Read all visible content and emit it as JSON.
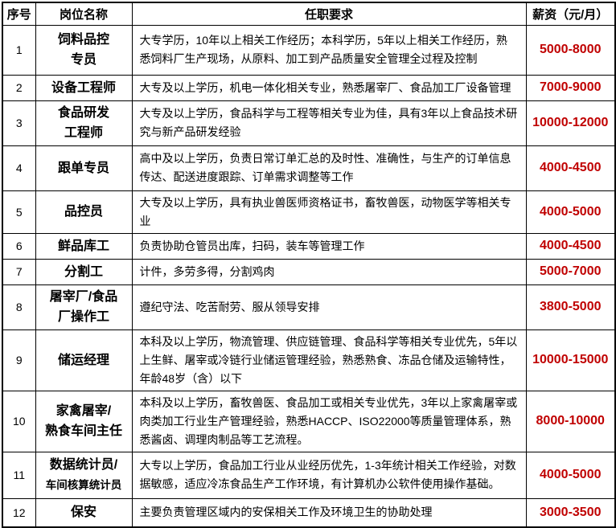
{
  "colors": {
    "salary_text": "#c00000",
    "border": "#000000",
    "header_text": "#000000",
    "body_text": "#000000"
  },
  "table": {
    "headers": [
      "序号",
      "岗位名称",
      "任职要求",
      "薪资（元/月）"
    ],
    "rows": [
      {
        "no": "1",
        "position": "饲料品控\n专员",
        "requirement": "大专学历，10年以上相关工作经历；本科学历，5年以上相关工作经历，熟悉饲料厂生产现场，从原料、加工到产品质量安全管理全过程及控制",
        "salary": "5000-8000"
      },
      {
        "no": "2",
        "position": "设备工程师",
        "requirement": "大专及以上学历，机电一体化相关专业，熟悉屠宰厂、食品加工厂设备管理",
        "salary": "7000-9000"
      },
      {
        "no": "3",
        "position": "食品研发\n工程师",
        "requirement": "大专及以上学历，食品科学与工程等相关专业为佳，具有3年以上食品技术研究与新产品研发经验",
        "salary": "10000-12000"
      },
      {
        "no": "4",
        "position": "跟单专员",
        "requirement": "高中及以上学历，负责日常订单汇总的及时性、准确性，与生产的订单信息传达、配送进度跟踪、订单需求调整等工作",
        "salary": "4000-4500"
      },
      {
        "no": "5",
        "position": "品控员",
        "requirement": "大专及以上学历，具有执业兽医师资格证书，畜牧兽医，动物医学等相关专业",
        "salary": "4000-5000"
      },
      {
        "no": "6",
        "position": "鲜品库工",
        "requirement": "负责协助仓管员出库，扫码，装车等管理工作",
        "salary": "4000-4500"
      },
      {
        "no": "7",
        "position": "分割工",
        "requirement": "计件，多劳多得，分割鸡肉",
        "salary": "5000-7000"
      },
      {
        "no": "8",
        "position": "屠宰厂/食品\n厂操作工",
        "requirement": "遵纪守法、吃苦耐劳、服从领导安排",
        "salary": "3800-5000"
      },
      {
        "no": "9",
        "position": "储运经理",
        "requirement": "本科及以上学历，物流管理、供应链管理、食品科学等相关专业优先，5年以上生鲜、屠宰或冷链行业储运管理经验，熟悉熟食、冻品仓储及运输特性，年龄48岁（含）以下",
        "salary": "10000-15000"
      },
      {
        "no": "10",
        "position": "家禽屠宰/\n熟食车间主任",
        "requirement": "本科及以上学历，畜牧兽医、食品加工或相关专业优先，3年以上家禽屠宰或肉类加工行业生产管理经验，熟悉HACCP、ISO22000等质量管理体系，熟悉酱卤、调理肉制品等工艺流程。",
        "salary": "8000-10000"
      },
      {
        "no": "11",
        "position": "数据统计员/\n车间核算统计员",
        "requirement": "大专以上学历，食品加工行业从业经历优先，1-3年统计相关工作经验，对数据敏感，适应冷冻食品生产工作环境，有计算机办公软件使用操作基础。",
        "salary": "4000-5000"
      },
      {
        "no": "12",
        "position": "保安",
        "requirement": "主要负责管理区域内的安保相关工作及环境卫生的协助处理",
        "salary": "3000-3500"
      }
    ]
  }
}
